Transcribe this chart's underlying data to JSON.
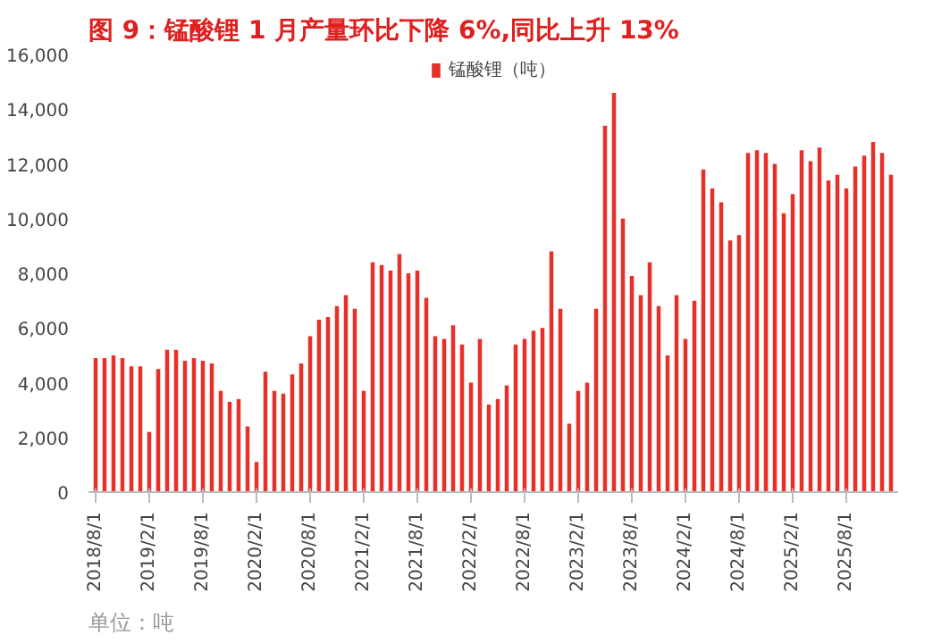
{
  "chart_data": {
    "type": "bar",
    "title": "图 9：锰酸锂 1 月产量环比下降 6%,同比上升 13%",
    "categories": [
      "2018/8/1",
      null,
      null,
      null,
      null,
      null,
      "2019/2/1",
      null,
      null,
      null,
      null,
      null,
      "2019/8/1",
      null,
      null,
      null,
      null,
      null,
      "2020/2/1",
      null,
      null,
      null,
      null,
      null,
      "2020/8/1",
      null,
      null,
      null,
      null,
      null,
      "2021/2/1",
      null,
      null,
      null,
      null,
      null,
      "2021/8/1",
      null,
      null,
      null,
      null,
      null,
      "2022/2/1",
      null,
      null,
      null,
      null,
      null,
      "2022/8/1",
      null,
      null,
      null,
      null,
      null,
      "2023/2/1",
      null,
      null,
      null,
      null,
      null,
      "2023/8/1",
      null,
      null,
      null,
      null,
      null,
      "2024/2/1",
      null,
      null,
      null,
      null,
      null,
      "2024/8/1",
      null,
      null,
      null,
      null,
      null,
      "2025/2/1",
      null,
      null,
      null,
      null,
      null,
      "2025/8/1",
      null,
      null,
      null,
      null,
      null
    ],
    "series": [
      {
        "name": "锰酸锂（吨）",
        "color": "#e8302a",
        "values": [
          4900,
          4900,
          5000,
          4900,
          4600,
          4600,
          2200,
          4500,
          5200,
          5200,
          4800,
          4900,
          4800,
          4700,
          3700,
          3300,
          3400,
          2400,
          1100,
          4400,
          3700,
          3600,
          4300,
          4700,
          5700,
          6300,
          6400,
          6800,
          7200,
          6700,
          3700,
          8400,
          8300,
          8100,
          8700,
          8000,
          8100,
          7100,
          5700,
          5600,
          6100,
          5400,
          4000,
          5600,
          3200,
          3400,
          3900,
          5400,
          5600,
          5900,
          6000,
          8800,
          6700,
          2500,
          3700,
          4000,
          6700,
          13400,
          14600,
          10000,
          7900,
          7200,
          8400,
          6800,
          5000,
          7200,
          5600,
          7000,
          11800,
          11100,
          10600,
          9200,
          9400,
          12400,
          12500,
          12400,
          12000,
          10200,
          10900,
          12500,
          12100,
          12600,
          11400,
          11600,
          11100,
          11900,
          12300,
          12800,
          12400,
          11600
        ]
      }
    ],
    "ylim": [
      0,
      16000
    ],
    "yticks": [
      0,
      {
        "value": 2000,
        "label": "2,000"
      },
      {
        "value": 4000,
        "label": "4,000"
      },
      {
        "value": 6000,
        "label": "6,000"
      },
      {
        "value": 8000,
        "label": "8,000"
      },
      {
        "value": 10000,
        "label": "10,000"
      },
      {
        "value": 12000,
        "label": "12,000"
      },
      {
        "value": 14000,
        "label": "14,000"
      },
      {
        "value": 16000,
        "label": "16,000"
      }
    ],
    "grid": false,
    "legend": "top",
    "annotations": [
      "单位：吨"
    ]
  }
}
